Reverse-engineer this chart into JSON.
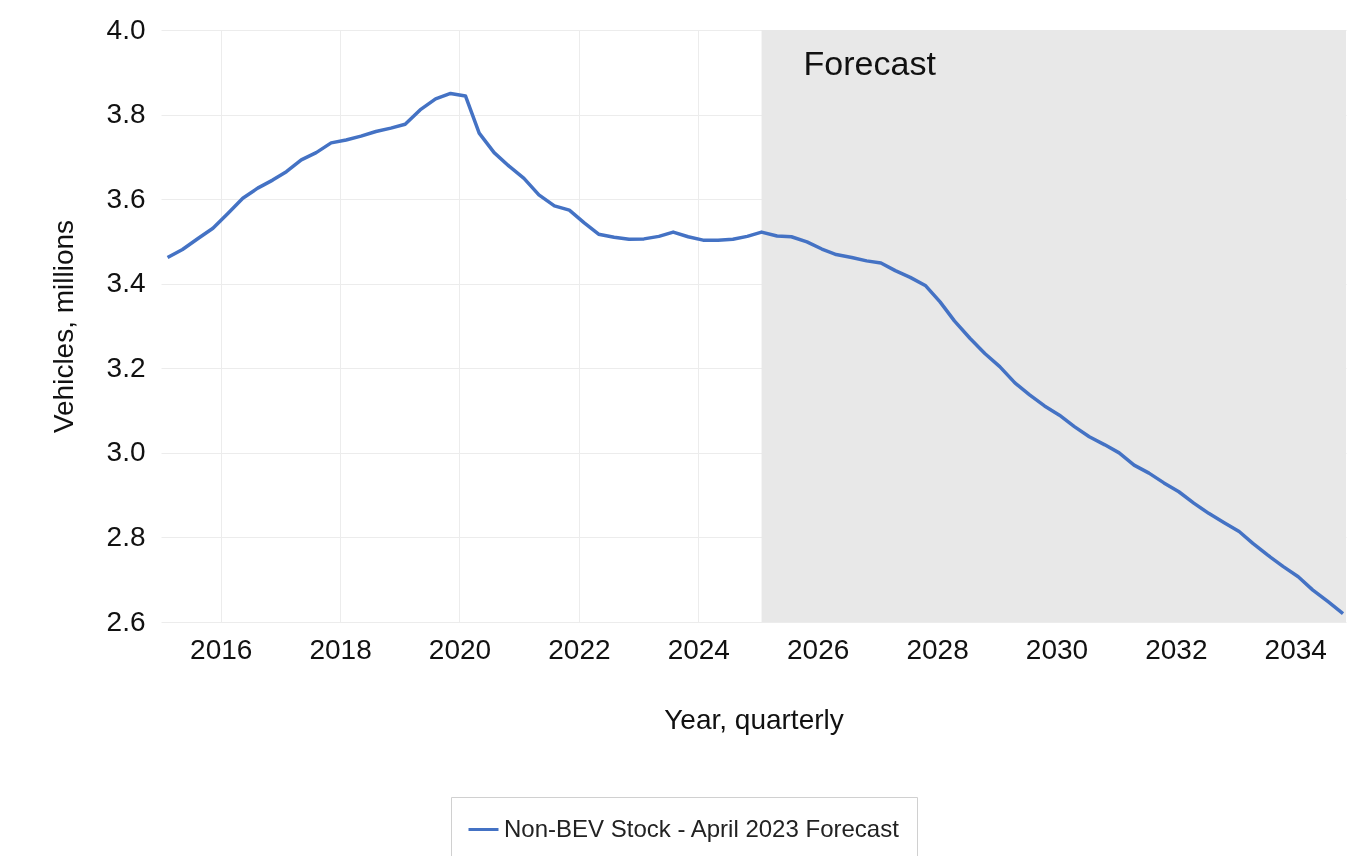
{
  "chart_data": {
    "type": "line",
    "xlabel": "Year, quarterly",
    "ylabel": "Vehicles, millions",
    "x": [
      2015.11,
      2015.36,
      2015.62,
      2015.87,
      2016.12,
      2016.37,
      2016.62,
      2016.87,
      2017.1,
      2017.35,
      2017.6,
      2017.85,
      2018.1,
      2018.35,
      2018.6,
      2018.85,
      2019.09,
      2019.34,
      2019.6,
      2019.85,
      2020.1,
      2020.33,
      2020.58,
      2020.83,
      2021.08,
      2021.33,
      2021.59,
      2021.84,
      2022.09,
      2022.33,
      2022.59,
      2022.84,
      2023.09,
      2023.34,
      2023.58,
      2023.83,
      2024.08,
      2024.33,
      2024.58,
      2024.82,
      2025.06,
      2025.32,
      2025.56,
      2025.82,
      2026.07,
      2026.31,
      2026.57,
      2026.82,
      2027.06,
      2027.3,
      2027.55,
      2027.81,
      2028.05,
      2028.29,
      2028.55,
      2028.8,
      2029.05,
      2029.3,
      2029.55,
      2029.8,
      2030.05,
      2030.3,
      2030.55,
      2030.81,
      2031.05,
      2031.3,
      2031.55,
      2031.8,
      2032.05,
      2032.3,
      2032.55,
      2032.81,
      2033.06,
      2033.29,
      2033.54,
      2033.8,
      2034.05,
      2034.29,
      2034.55,
      2034.8
    ],
    "series": [
      {
        "name": "Non-BEV Stock - April 2023 Forecast",
        "color": "#4472c4",
        "values": [
          3.462,
          3.481,
          3.507,
          3.531,
          3.566,
          3.602,
          3.626,
          3.645,
          3.665,
          3.693,
          3.71,
          3.733,
          3.74,
          3.749,
          3.76,
          3.768,
          3.777,
          3.811,
          3.837,
          3.85,
          3.844,
          3.756,
          3.71,
          3.678,
          3.649,
          3.61,
          3.584,
          3.574,
          3.544,
          3.517,
          3.51,
          3.505,
          3.506,
          3.512,
          3.522,
          3.511,
          3.503,
          3.503,
          3.505,
          3.512,
          3.522,
          3.513,
          3.511,
          3.499,
          3.482,
          3.469,
          3.462,
          3.454,
          3.449,
          3.431,
          3.415,
          3.395,
          3.357,
          3.312,
          3.271,
          3.235,
          3.204,
          3.166,
          3.137,
          3.111,
          3.089,
          3.062,
          3.038,
          3.019,
          3.0,
          2.971,
          2.952,
          2.929,
          2.908,
          2.881,
          2.857,
          2.835,
          2.814,
          2.786,
          2.758,
          2.731,
          2.707,
          2.676,
          2.648,
          2.62
        ]
      }
    ],
    "xlim": [
      2015,
      2034.85
    ],
    "xticks": [
      2016,
      2018,
      2020,
      2022,
      2024,
      2026,
      2028,
      2030,
      2032,
      2034
    ],
    "ylim": [
      2.6,
      4.0
    ],
    "yticks": [
      2.6,
      2.8,
      {
        "value": 3,
        "label": "3.0"
      },
      3.2,
      3.4,
      3.6,
      3.8,
      {
        "value": 4,
        "label": "4.0"
      }
    ],
    "bands": [
      {
        "axis": "x",
        "from": 2025.06,
        "to": 2034.85,
        "label": "Forecast",
        "color": "#e8e8e8"
      }
    ],
    "grid": true,
    "legend": "bottom"
  }
}
